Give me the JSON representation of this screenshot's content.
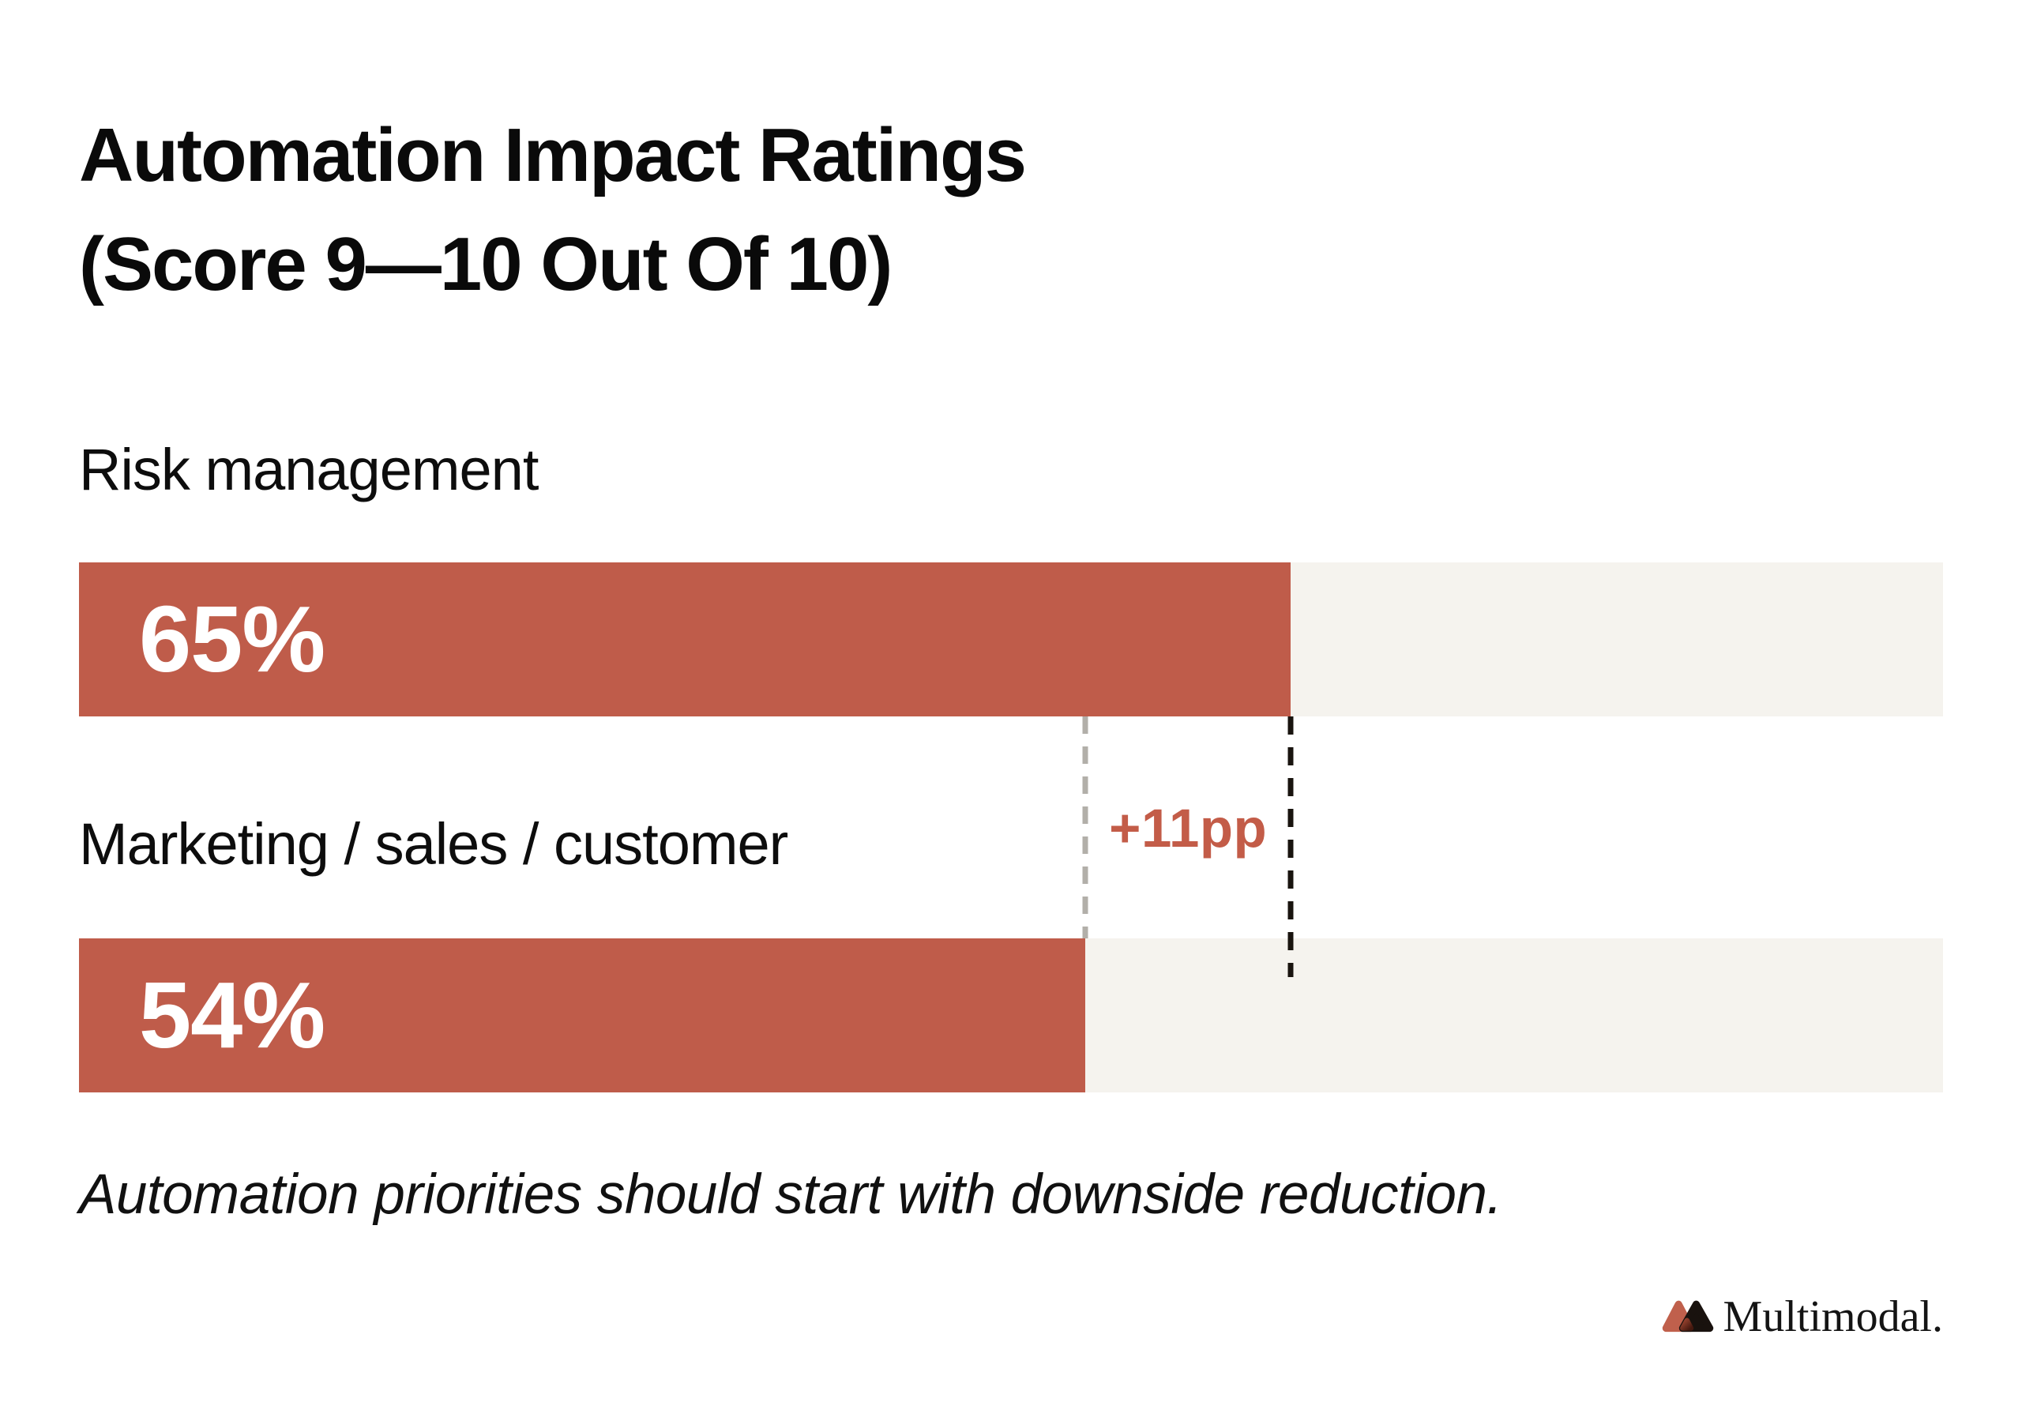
{
  "title": {
    "line1": "Automation Impact Ratings",
    "line2": "(Score 9—10 Out Of 10)"
  },
  "chart_data": {
    "type": "bar",
    "orientation": "horizontal",
    "title": "Automation Impact Ratings (Score 9—10 Out Of 10)",
    "categories": [
      "Risk management",
      "Marketing / sales / customer"
    ],
    "values": [
      65,
      54
    ],
    "value_labels": [
      "65%",
      "54%"
    ],
    "xlim": [
      0,
      100
    ],
    "grid": false,
    "legend": false,
    "annotation": {
      "text": "+11pp",
      "from_value": 54,
      "to_value": 65
    },
    "colors": {
      "bar_fill": "#bf5c4a",
      "bar_track": "#f5f3ee",
      "value_text": "#ffffff",
      "annotation_text": "#c35c48",
      "dash_lower_value": "#b2afa9",
      "dash_higher_value": "#19140f"
    }
  },
  "note": "Automation priorities should start with downside reduction.",
  "footer": {
    "brand": "Multimodal.",
    "icon": "multimodal-logo-icon"
  }
}
